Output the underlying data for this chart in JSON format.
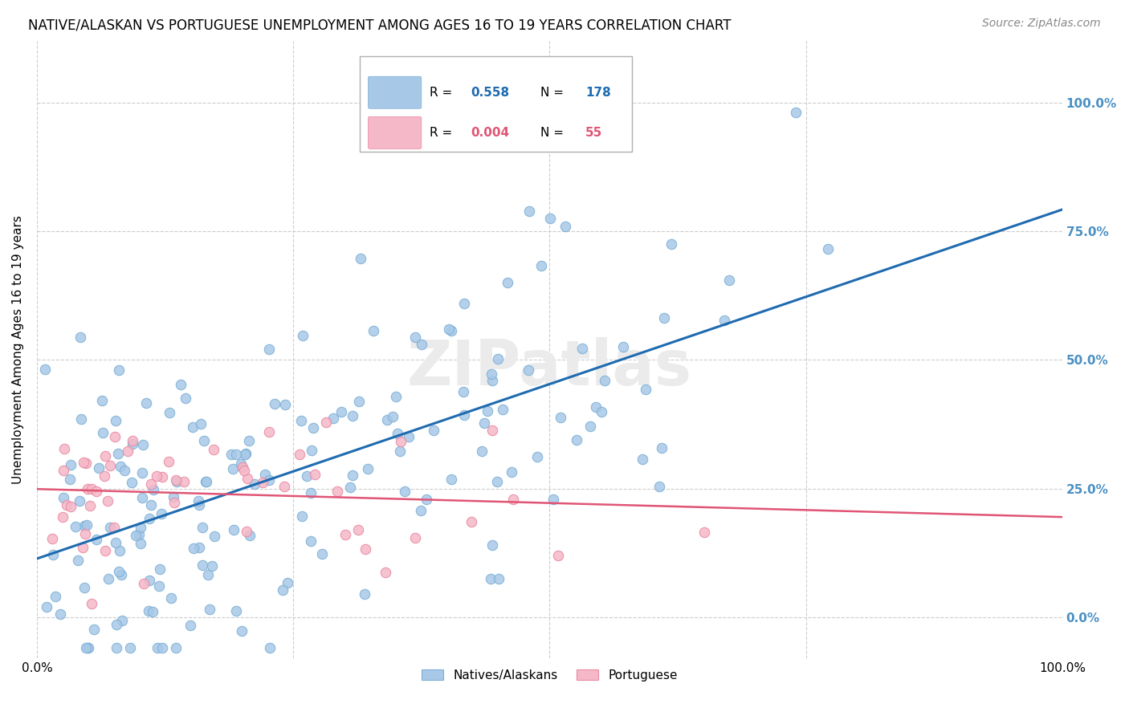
{
  "title": "NATIVE/ALASKAN VS PORTUGUESE UNEMPLOYMENT AMONG AGES 16 TO 19 YEARS CORRELATION CHART",
  "source": "Source: ZipAtlas.com",
  "ylabel": "Unemployment Among Ages 16 to 19 years",
  "legend_label1": "Natives/Alaskans",
  "legend_label2": "Portuguese",
  "blue_color": "#a8c8e8",
  "blue_edge_color": "#7bafd4",
  "blue_line_color": "#1f6bb0",
  "pink_color": "#f5b8c8",
  "pink_edge_color": "#e888a0",
  "pink_line_color": "#e05575",
  "watermark_color": "#ebebeb",
  "background_color": "#ffffff",
  "grid_color": "#cccccc",
  "right_label_color": "#4a90c4",
  "title_fontsize": 12,
  "source_fontsize": 10,
  "tick_fontsize": 11,
  "legend_r1_val": "0.558",
  "legend_n1_val": "178",
  "legend_r2_val": "0.004",
  "legend_n2_val": "55",
  "xlim": [
    0.0,
    1.0
  ],
  "ylim": [
    -0.08,
    1.12
  ],
  "yticks": [
    0.0,
    0.25,
    0.5,
    0.75,
    1.0
  ]
}
